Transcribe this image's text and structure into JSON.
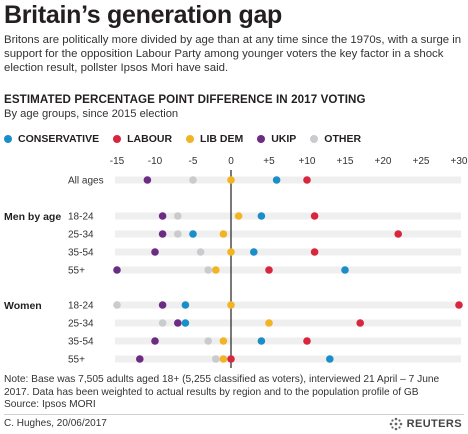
{
  "header": {
    "title": "Britain’s generation gap",
    "intro": "Britons are politically more divided by age than at any time since the 1970s, with a surge in support for the opposition Labour Party among younger voters the key factor in a shock election result, pollster Ipsos Mori have said.",
    "subhead": "ESTIMATED PERCENTAGE POINT DIFFERENCE IN 2017 VOTING",
    "subnote": "By age groups, since 2015 election"
  },
  "legend": [
    {
      "label": "CONSERVATIVE",
      "color": "#1a8ec8"
    },
    {
      "label": "LABOUR",
      "color": "#d7263d"
    },
    {
      "label": "LIB DEM",
      "color": "#f2b423"
    },
    {
      "label": "UKIP",
      "color": "#6b2c83"
    },
    {
      "label": "OTHER",
      "color": "#c9cbce"
    }
  ],
  "chart_data": {
    "type": "scatter",
    "x_ticks": [
      "-15",
      "-10",
      "-5",
      "0",
      "+5",
      "+10",
      "+15",
      "+20",
      "+25",
      "+30"
    ],
    "xlim": [
      -15,
      30
    ],
    "groups": [
      {
        "label": "",
        "rows": [
          {
            "label": "All ages",
            "values": {
              "CONSERVATIVE": 6,
              "LABOUR": 10,
              "LIB DEM": 0,
              "UKIP": -11,
              "OTHER": -5
            }
          }
        ]
      },
      {
        "label": "Men by age",
        "rows": [
          {
            "label": "18-24",
            "values": {
              "CONSERVATIVE": 4,
              "LABOUR": 11,
              "LIB DEM": 1,
              "UKIP": -9,
              "OTHER": -7
            }
          },
          {
            "label": "25-34",
            "values": {
              "CONSERVATIVE": -5,
              "LABOUR": 22,
              "LIB DEM": -1,
              "UKIP": -9,
              "OTHER": -7
            }
          },
          {
            "label": "35-54",
            "values": {
              "CONSERVATIVE": 3,
              "LABOUR": 11,
              "LIB DEM": 0,
              "UKIP": -10,
              "OTHER": -4
            }
          },
          {
            "label": "55+",
            "values": {
              "CONSERVATIVE": 15,
              "LABOUR": 5,
              "LIB DEM": -2,
              "UKIP": -15,
              "OTHER": -3
            }
          }
        ]
      },
      {
        "label": "Women",
        "rows": [
          {
            "label": "18-24",
            "values": {
              "CONSERVATIVE": -6,
              "LABOUR": 30,
              "LIB DEM": 0,
              "UKIP": -9,
              "OTHER": -15
            }
          },
          {
            "label": "25-34",
            "values": {
              "CONSERVATIVE": -6,
              "LABOUR": 17,
              "LIB DEM": 5,
              "UKIP": -7,
              "OTHER": -9
            }
          },
          {
            "label": "35-54",
            "values": {
              "CONSERVATIVE": 4,
              "LABOUR": 10,
              "LIB DEM": -1,
              "UKIP": -10,
              "OTHER": -3
            }
          },
          {
            "label": "55+",
            "values": {
              "CONSERVATIVE": 13,
              "LABOUR": 0,
              "LIB DEM": -1,
              "UKIP": -12,
              "OTHER": -2
            }
          }
        ]
      }
    ]
  },
  "footer": {
    "note": "Note: Base was 7,505 adults aged 18+ (5,255 classified as voters), interviewed 21 April – 7 June 2017. Data has been weighted to actual results by region and to the population profile of GB",
    "source": "Source: Ipsos MORI",
    "credit": "C. Hughes, 20/06/2017",
    "logo_text": "REUTERS"
  }
}
